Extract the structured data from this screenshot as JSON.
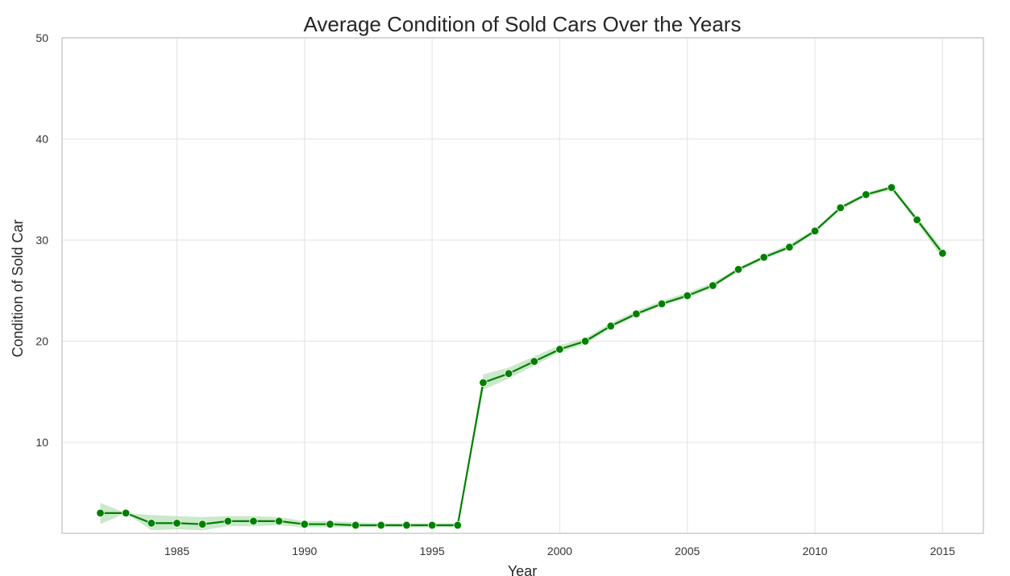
{
  "chart_data": {
    "type": "line",
    "title": "Average Condition of Sold Cars Over the Years",
    "xlabel": "Year",
    "ylabel": "Condition of Sold Car",
    "xlim": [
      1980.5,
      2016.6
    ],
    "ylim": [
      1,
      50
    ],
    "x_ticks": [
      1985,
      1990,
      1995,
      2000,
      2005,
      2010,
      2015
    ],
    "y_ticks": [
      10,
      20,
      30,
      40,
      50
    ],
    "grid": true,
    "series": [
      {
        "color": "#008000",
        "band_color": "#9fd69f",
        "x": [
          1982,
          1983,
          1984,
          1985,
          1986,
          1987,
          1988,
          1989,
          1990,
          1991,
          1992,
          1993,
          1994,
          1995,
          1996,
          1997,
          1998,
          1999,
          2000,
          2001,
          2002,
          2003,
          2004,
          2005,
          2006,
          2007,
          2008,
          2009,
          2010,
          2011,
          2012,
          2013,
          2014,
          2015
        ],
        "y": [
          3.0,
          3.0,
          2.0,
          2.0,
          1.9,
          2.2,
          2.2,
          2.2,
          1.9,
          1.9,
          1.8,
          1.8,
          1.8,
          1.8,
          1.8,
          15.9,
          16.8,
          18.0,
          19.2,
          20.0,
          21.5,
          22.7,
          23.7,
          24.5,
          25.5,
          27.1,
          28.3,
          29.3,
          30.9,
          33.2,
          34.5,
          35.2,
          32.0,
          28.7
        ],
        "ci_low": [
          1.9,
          3.0,
          1.3,
          1.4,
          1.3,
          1.7,
          1.7,
          1.8,
          1.6,
          1.6,
          1.6,
          1.6,
          1.6,
          1.6,
          1.6,
          15.2,
          16.3,
          17.6,
          18.9,
          19.7,
          21.3,
          22.5,
          23.5,
          24.3,
          25.3,
          26.9,
          28.1,
          29.1,
          30.7,
          33.0,
          34.3,
          35.0,
          31.7,
          28.2
        ],
        "ci_high": [
          4.0,
          3.0,
          2.8,
          2.7,
          2.6,
          2.7,
          2.7,
          2.6,
          2.2,
          2.2,
          2.1,
          2.0,
          2.0,
          2.0,
          2.0,
          16.7,
          17.4,
          18.5,
          19.6,
          20.3,
          21.8,
          23.0,
          24.0,
          24.8,
          25.8,
          27.3,
          28.5,
          29.6,
          31.1,
          33.4,
          34.7,
          35.4,
          32.3,
          29.1
        ]
      }
    ]
  }
}
